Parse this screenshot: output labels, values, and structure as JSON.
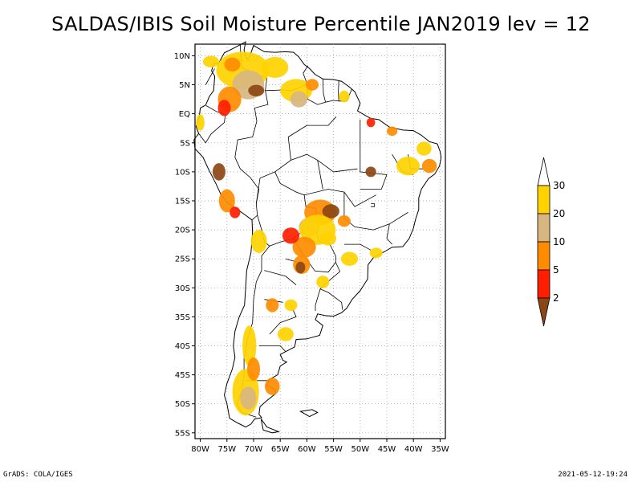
{
  "title": "SALDAS/IBIS Soil Moisture Percentile JAN2019 lev = 12",
  "footer": {
    "left": "GrADS: COLA/IGES",
    "right": "2021-05-12-19:24"
  },
  "map": {
    "lon_range": [
      -81,
      -34
    ],
    "lat_range": [
      -56,
      12
    ],
    "lat_ticks": [
      {
        "lat": 10,
        "label": "10N"
      },
      {
        "lat": 5,
        "label": "5N"
      },
      {
        "lat": 0,
        "label": "EQ"
      },
      {
        "lat": -5,
        "label": "5S"
      },
      {
        "lat": -10,
        "label": "10S"
      },
      {
        "lat": -15,
        "label": "15S"
      },
      {
        "lat": -20,
        "label": "20S"
      },
      {
        "lat": -25,
        "label": "25S"
      },
      {
        "lat": -30,
        "label": "30S"
      },
      {
        "lat": -35,
        "label": "35S"
      },
      {
        "lat": -40,
        "label": "40S"
      },
      {
        "lat": -45,
        "label": "45S"
      },
      {
        "lat": -50,
        "label": "50S"
      },
      {
        "lat": -55,
        "label": "55S"
      }
    ],
    "lon_ticks": [
      {
        "lon": -80,
        "label": "80W"
      },
      {
        "lon": -75,
        "label": "75W"
      },
      {
        "lon": -70,
        "label": "70W"
      },
      {
        "lon": -65,
        "label": "65W"
      },
      {
        "lon": -60,
        "label": "60W"
      },
      {
        "lon": -55,
        "label": "55W"
      },
      {
        "lon": -50,
        "label": "50W"
      },
      {
        "lon": -45,
        "label": "45W"
      },
      {
        "lon": -40,
        "label": "40W"
      },
      {
        "lon": -35,
        "label": "35W"
      }
    ],
    "grid": true,
    "grid_style": "dotted",
    "colorbar": {
      "placement": "right",
      "levels": [
        {
          "label": "30",
          "color": "#ffd200"
        },
        {
          "label": "20",
          "color": "#d7b682"
        },
        {
          "label": "10",
          "color": "#ff8c00"
        },
        {
          "label": "5",
          "color": "#ff1e00"
        },
        {
          "label": "2",
          "color": "#8c4614"
        }
      ],
      "segments": [
        "#ffffff",
        "#ffd200",
        "#d7b682",
        "#ff8c00",
        "#ff1e00",
        "#8c4614"
      ]
    }
  }
}
